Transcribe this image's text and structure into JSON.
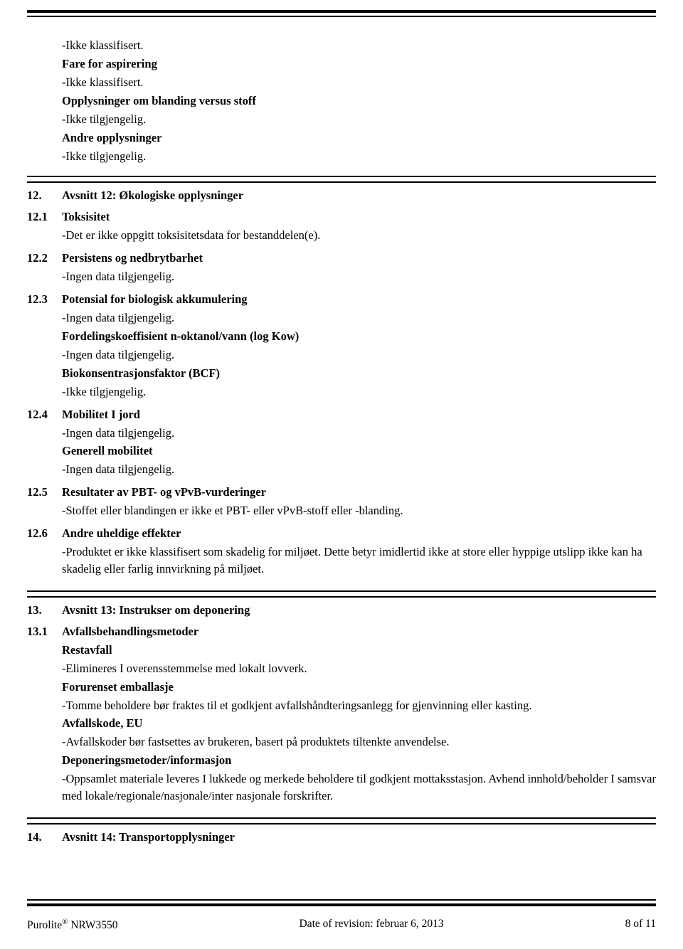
{
  "s11_extra": {
    "line1": "-Ikke klassifisert.",
    "aspiration_label": "Fare for aspirering",
    "aspiration_text": "-Ikke klassifisert.",
    "mixture_label": "Opplysninger om blanding versus stoff",
    "mixture_text": "-Ikke tilgjengelig.",
    "other_label": "Andre opplysninger",
    "other_text": "-Ikke tilgjengelig."
  },
  "s12": {
    "num": "12.",
    "title": "Avsnitt 12: Økologiske opplysninger",
    "s1": {
      "num": "12.1",
      "title": "Toksisitet",
      "text": "-Det er ikke oppgitt toksisitetsdata for bestanddelen(e)."
    },
    "s2": {
      "num": "12.2",
      "title": "Persistens og nedbrytbarhet",
      "text": "-Ingen data tilgjengelig."
    },
    "s3": {
      "num": "12.3",
      "title": "Potensial for biologisk akkumulering",
      "text": "-Ingen data tilgjengelig.",
      "kow_label": "Fordelingskoeffisient n-oktanol/vann (log Kow)",
      "kow_text": "-Ingen data tilgjengelig.",
      "bcf_label": "Biokonsentrasjonsfaktor (BCF)",
      "bcf_text": "-Ikke tilgjengelig."
    },
    "s4": {
      "num": "12.4",
      "title": " Mobilitet I jord",
      "text": "-Ingen data tilgjengelig.",
      "gen_label": "Generell mobilitet",
      "gen_text": "-Ingen data tilgjengelig."
    },
    "s5": {
      "num": "12.5",
      "title": "Resultater av PBT- og vPvB-vurderinger",
      "text": "-Stoffet eller blandingen er ikke et PBT- eller vPvB-stoff eller -blanding."
    },
    "s6": {
      "num": "12.6",
      "title": "Andre uheldige effekter",
      "text": "-Produktet er ikke klassifisert som skadelig for miljøet. Dette betyr imidlertid ikke at store eller hyppige utslipp ikke kan ha skadelig eller farlig innvirkning på miljøet."
    }
  },
  "s13": {
    "num": "13.",
    "title": "Avsnitt 13: Instrukser om deponering",
    "s1": {
      "num": "13.1",
      "title": "Avfallsbehandlingsmetoder",
      "residual_label": "Restavfall",
      "residual_text": "-Elimineres I overensstemmelse med lokalt lovverk.",
      "packaging_label": "Forurenset emballasje",
      "packaging_text": "-Tomme beholdere bør fraktes til et godkjent avfallshåndteringsanlegg for gjenvinning eller kasting.",
      "wastecode_label": "Avfallskode, EU",
      "wastecode_text": "-Avfallskoder bør fastsettes av brukeren, basert på produktets tiltenkte anvendelse.",
      "disposal_label": "Deponeringsmetoder/informasjon",
      "disposal_text": "-Oppsamlet materiale leveres I lukkede og merkede beholdere til godkjent mottaksstasjon. Avhend innhold/beholder I samsvar med lokale/regionale/nasjonale/inter nasjonale forskrifter."
    }
  },
  "s14": {
    "num": "14.",
    "title": "Avsnitt 14: Transportopplysninger"
  },
  "footer": {
    "product_prefix": "Purolite",
    "product_suffix": " NRW3550",
    "center": "Date of revision: februar 6, 2013",
    "right": "8 of 11"
  }
}
